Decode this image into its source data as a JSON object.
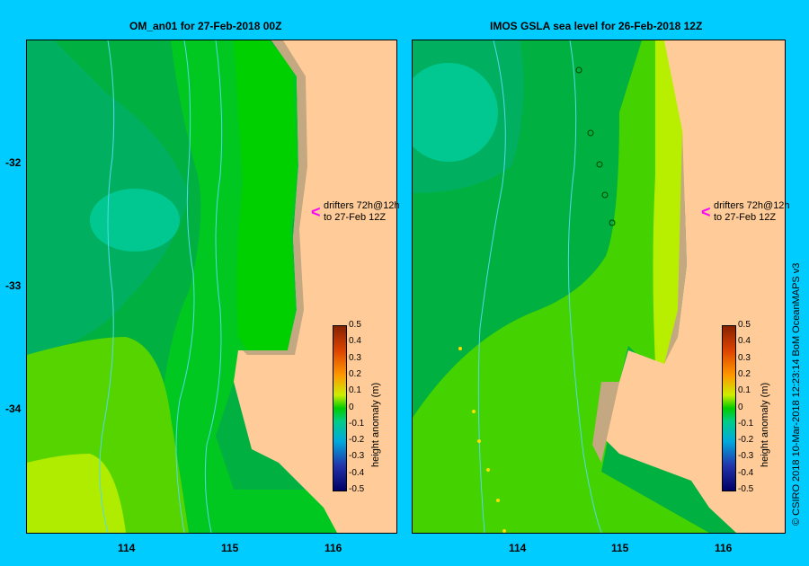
{
  "left_panel": {
    "title": "OM_an01  for 27-Feb-2018 00Z",
    "drifters_line1": "drifters 72h@12h",
    "drifters_line2": "to 27-Feb 12Z"
  },
  "right_panel": {
    "title": "IMOS GSLA sea level   for 26-Feb-2018 12Z",
    "drifters_line1": "drifters 72h@12h",
    "drifters_line2": "to 27-Feb 12Z"
  },
  "y_ticks": [
    "-32",
    "-33",
    "-34"
  ],
  "x_ticks_left": [
    "114",
    "115",
    "116"
  ],
  "x_ticks_right": [
    "114",
    "115",
    "116"
  ],
  "colorbar": {
    "label": "height anomaly (m)",
    "ticks": [
      "0.5",
      "0.4",
      "0.3",
      "0.2",
      "0.1",
      "0",
      "-0.1",
      "-0.2",
      "-0.3",
      "-0.4",
      "-0.5"
    ]
  },
  "copyright": "© CSIRO 2018   10-Mar-2018 12:23:14 BoM OceanMAPS v3",
  "colors": {
    "background": "#00ccff",
    "land": "#ffcc99",
    "coast_strip": "#c4a882",
    "dark_green": "#00b050",
    "mid_green": "#00c030",
    "bright_green": "#00d000",
    "teal": "#00c890",
    "light_green": "#66dd00",
    "yellow_green": "#bbf000",
    "drifter_arrow": "#ff00ff",
    "isobath": "#55d8ee"
  }
}
